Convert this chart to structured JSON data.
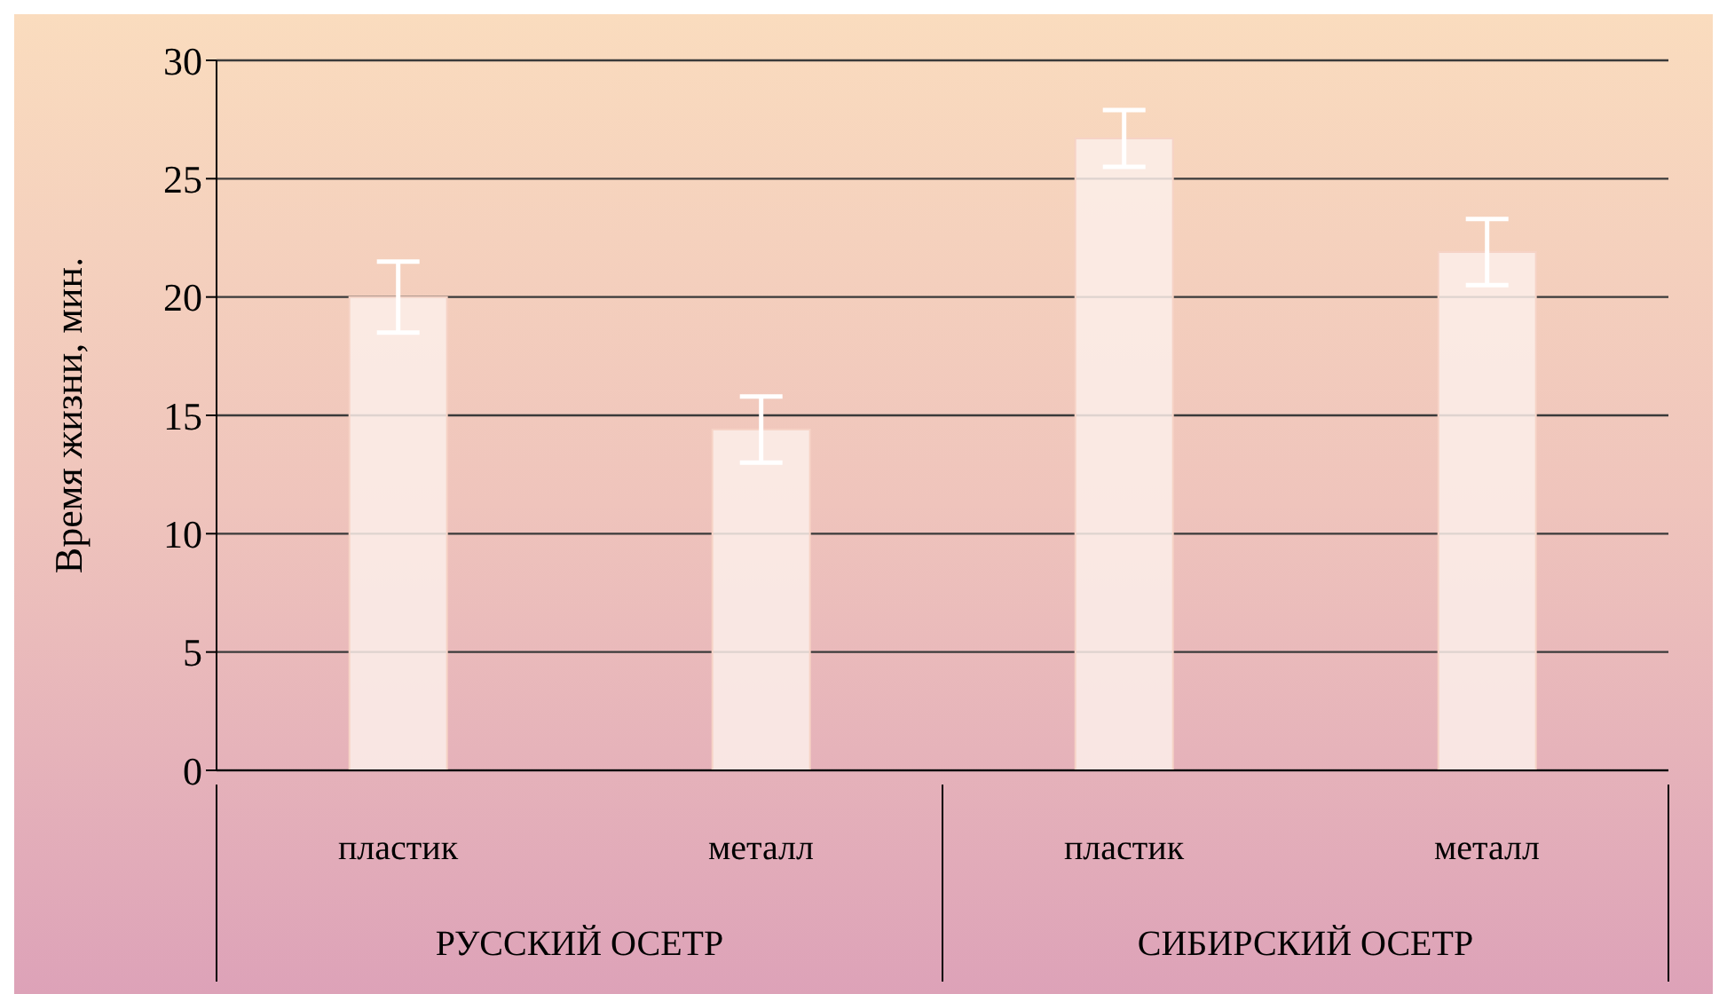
{
  "chart_data": {
    "type": "bar",
    "ylabel": "Время жизни, мин.",
    "categories": [
      "пластик",
      "металл",
      "пластик",
      "металл"
    ],
    "values": [
      20,
      14.4,
      26.7,
      21.9
    ],
    "errors": [
      1.5,
      1.4,
      1.2,
      1.4
    ],
    "color": "#fbeeea",
    "ylim": [
      0,
      30
    ],
    "yticks": [
      0,
      5,
      10,
      15,
      20,
      25,
      30
    ],
    "grid": "y",
    "annotations": [
      "РУССКИЙ ОСЕТР",
      "СИБИРСКИЙ ОСЕТР"
    ]
  }
}
